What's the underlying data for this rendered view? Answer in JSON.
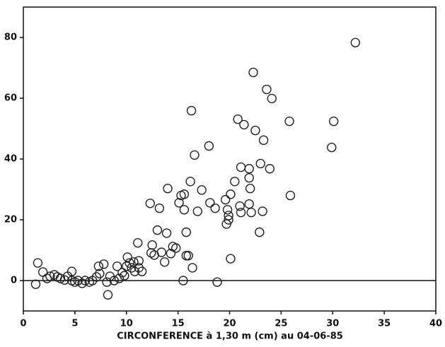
{
  "chart_data": {
    "type": "scatter",
    "xlabel": "CIRCONFERENCE à 1,30 m (cm) au 04-06-85",
    "xlim": [
      0,
      40
    ],
    "xticks": [
      0,
      5,
      10,
      15,
      20,
      25,
      30,
      35,
      40
    ],
    "ylim": [
      -10,
      90
    ],
    "yticks": [
      0,
      20,
      40,
      60,
      80
    ],
    "reference_line": 0,
    "color": "#222",
    "x": [
      1.4,
      1.2,
      1.9,
      2.3,
      2.6,
      3.0,
      3.3,
      3.6,
      4.0,
      4.3,
      4.7,
      4.7,
      5.0,
      5.3,
      5.7,
      6.0,
      6.4,
      6.7,
      7.1,
      7.3,
      7.4,
      7.8,
      8.1,
      8.2,
      8.4,
      8.8,
      9.1,
      9.3,
      9.6,
      9.8,
      10.0,
      10.1,
      10.3,
      10.5,
      10.7,
      10.8,
      11.1,
      11.2,
      11.2,
      11.5,
      12.3,
      12.4,
      12.5,
      12.7,
      13.0,
      13.2,
      13.4,
      13.7,
      13.9,
      14.0,
      14.3,
      14.5,
      14.8,
      15.1,
      15.3,
      15.5,
      15.6,
      15.6,
      15.8,
      15.8,
      16.0,
      16.2,
      16.3,
      16.4,
      16.6,
      16.9,
      17.3,
      18.0,
      18.1,
      18.6,
      18.8,
      19.6,
      19.7,
      19.8,
      19.9,
      19.9,
      20.1,
      20.1,
      20.5,
      20.8,
      21.0,
      21.1,
      21.1,
      21.4,
      21.9,
      21.9,
      21.9,
      22.0,
      22.1,
      22.3,
      22.5,
      22.9,
      23.0,
      23.2,
      23.3,
      23.6,
      23.9,
      24.1,
      25.8,
      25.9,
      29.9,
      30.1,
      32.2
    ],
    "values": [
      5.8,
      -1.2,
      2.8,
      0.7,
      1.4,
      1.9,
      1.2,
      0.7,
      0.2,
      1.4,
      3.0,
      0,
      -0.5,
      0,
      -0.9,
      0,
      -0.5,
      0,
      1.2,
      4.7,
      2.3,
      5.4,
      -0.5,
      -4.7,
      1.4,
      0,
      4.7,
      0.7,
      2.6,
      1.6,
      4.7,
      7.7,
      5.8,
      4.2,
      6.1,
      3.0,
      12.4,
      6.5,
      4.2,
      3.0,
      25.4,
      9.1,
      11.7,
      8.4,
      16.6,
      23.8,
      9.3,
      6.1,
      15.6,
      30.3,
      8.9,
      11.2,
      10.7,
      25.6,
      28.0,
      0,
      23.3,
      28.4,
      8.2,
      15.9,
      8.2,
      32.6,
      55.9,
      4.2,
      41.3,
      22.8,
      29.8,
      44.3,
      25.6,
      23.8,
      -0.5,
      26.6,
      18.6,
      23.3,
      20.0,
      21.4,
      7.2,
      28.4,
      32.6,
      53.1,
      24.5,
      37.3,
      22.4,
      51.3,
      36.8,
      25.2,
      33.8,
      30.3,
      22.4,
      68.5,
      49.4,
      15.9,
      38.5,
      22.8,
      46.2,
      62.9,
      36.8,
      59.9,
      52.4,
      28.0,
      43.8,
      52.4,
      78.3
    ]
  }
}
